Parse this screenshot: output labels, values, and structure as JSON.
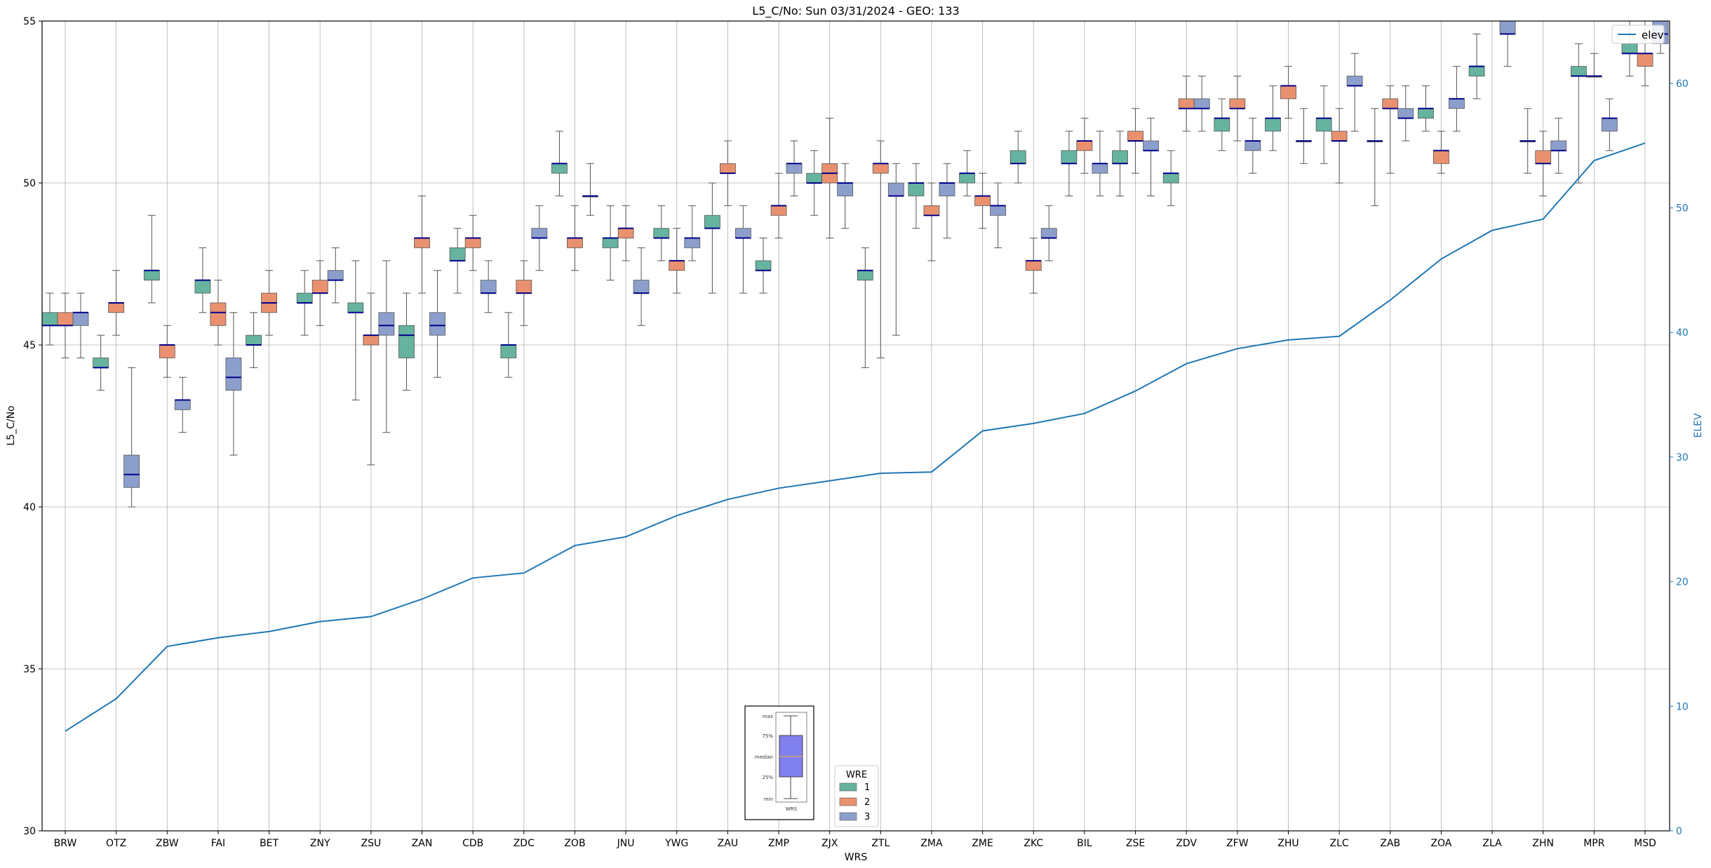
{
  "chart_data": {
    "type": "box",
    "title": "L5_C/No: Sun 03/31/2024 - GEO: 133",
    "xlabel": "WRS",
    "ylabel": "L5_C/No",
    "y2label": "ELEV",
    "ylim": [
      30,
      55
    ],
    "y2lim": [
      0,
      65
    ],
    "yticks": [
      "30",
      "35",
      "40",
      "45",
      "50",
      "55"
    ],
    "y2ticks": [
      "0",
      "10",
      "20",
      "30",
      "40",
      "50",
      "60"
    ],
    "grid": true,
    "categories": [
      "BRW",
      "OTZ",
      "ZBW",
      "FAI",
      "BET",
      "ZNY",
      "ZSU",
      "ZAN",
      "CDB",
      "ZDC",
      "ZOB",
      "JNU",
      "YWG",
      "ZAU",
      "ZMP",
      "ZJX",
      "ZTL",
      "ZMA",
      "ZME",
      "ZKC",
      "BIL",
      "ZSE",
      "ZDV",
      "ZFW",
      "ZHU",
      "ZLC",
      "ZAB",
      "ZOA",
      "ZLA",
      "ZHN",
      "MPR",
      "MSD"
    ],
    "series_colors": {
      "1": "#66b3a0",
      "2": "#e9916f",
      "3": "#8c9fcc"
    },
    "legend": {
      "title": "WRE",
      "entries": [
        "1",
        "2",
        "3"
      ],
      "placement": "bottom-center"
    },
    "boxes": {
      "BRW": [
        [
          45.0,
          45.6,
          45.6,
          46.0,
          46.6
        ],
        [
          44.6,
          45.6,
          45.6,
          46.0,
          46.6
        ],
        [
          44.6,
          45.6,
          46.0,
          46.0,
          46.6
        ]
      ],
      "OTZ": [
        [
          43.6,
          44.3,
          44.3,
          44.6,
          45.3
        ],
        [
          45.3,
          46.0,
          46.3,
          46.3,
          47.3
        ],
        [
          40.0,
          40.6,
          41.0,
          41.6,
          44.3
        ]
      ],
      "ZBW": [
        [
          46.3,
          47.0,
          47.3,
          47.3,
          49.0
        ],
        [
          44.0,
          44.6,
          45.0,
          45.0,
          45.6
        ],
        [
          42.3,
          43.0,
          43.3,
          43.3,
          44.0
        ]
      ],
      "FAI": [
        [
          46.0,
          46.6,
          47.0,
          47.0,
          48.0
        ],
        [
          45.0,
          45.6,
          46.0,
          46.3,
          47.0
        ],
        [
          41.6,
          43.6,
          44.0,
          44.6,
          46.0
        ]
      ],
      "BET": [
        [
          44.3,
          45.0,
          45.0,
          45.3,
          46.0
        ],
        [
          45.3,
          46.0,
          46.3,
          46.6,
          47.3
        ],
        null
      ],
      "ZNY": [
        [
          45.3,
          46.3,
          46.3,
          46.6,
          47.3
        ],
        [
          45.6,
          46.6,
          46.6,
          47.0,
          47.6
        ],
        [
          46.3,
          47.0,
          47.0,
          47.3,
          48.0
        ]
      ],
      "ZSU": [
        [
          43.3,
          46.0,
          46.0,
          46.3,
          47.6
        ],
        [
          41.3,
          45.0,
          45.3,
          45.3,
          46.6
        ],
        [
          42.3,
          45.3,
          45.6,
          46.0,
          47.6
        ]
      ],
      "ZAN": [
        [
          43.6,
          44.6,
          45.3,
          45.6,
          46.6
        ],
        [
          46.6,
          48.0,
          48.3,
          48.3,
          49.6
        ],
        [
          44.0,
          45.3,
          45.6,
          46.0,
          47.3
        ]
      ],
      "CDB": [
        [
          46.6,
          47.6,
          47.6,
          48.0,
          48.6
        ],
        [
          47.3,
          48.0,
          48.3,
          48.3,
          49.0
        ],
        [
          46.0,
          46.6,
          46.6,
          47.0,
          47.6
        ]
      ],
      "ZDC": [
        [
          44.0,
          44.6,
          45.0,
          45.0,
          46.0
        ],
        [
          45.6,
          46.6,
          46.6,
          47.0,
          47.6
        ],
        [
          47.3,
          48.3,
          48.3,
          48.6,
          49.3
        ]
      ],
      "ZOB": [
        [
          49.6,
          50.3,
          50.6,
          50.6,
          51.6
        ],
        [
          47.3,
          48.0,
          48.3,
          48.3,
          49.3
        ],
        [
          49.0,
          49.6,
          49.6,
          49.6,
          50.6
        ]
      ],
      "JNU": [
        [
          47.0,
          48.0,
          48.3,
          48.3,
          49.3
        ],
        [
          47.6,
          48.3,
          48.6,
          48.6,
          49.3
        ],
        [
          45.6,
          46.6,
          46.6,
          47.0,
          48.0
        ]
      ],
      "YWG": [
        [
          47.6,
          48.3,
          48.3,
          48.6,
          49.3
        ],
        [
          46.6,
          47.3,
          47.6,
          47.6,
          48.6
        ],
        [
          47.6,
          48.0,
          48.3,
          48.3,
          49.3
        ]
      ],
      "ZAU": [
        [
          46.6,
          48.6,
          48.6,
          49.0,
          50.0
        ],
        [
          49.3,
          50.3,
          50.3,
          50.6,
          51.3
        ],
        [
          46.6,
          48.3,
          48.3,
          48.6,
          49.3
        ]
      ],
      "ZMP": [
        [
          46.6,
          47.3,
          47.3,
          47.6,
          48.3
        ],
        [
          48.3,
          49.0,
          49.3,
          49.3,
          50.3
        ],
        [
          49.6,
          50.3,
          50.6,
          50.6,
          51.3
        ]
      ],
      "ZJX": [
        [
          49.0,
          50.0,
          50.0,
          50.3,
          51.0
        ],
        [
          48.3,
          50.0,
          50.3,
          50.6,
          52.0
        ],
        [
          48.6,
          49.6,
          50.0,
          50.0,
          50.6
        ]
      ],
      "ZTL": [
        [
          44.3,
          47.0,
          47.3,
          47.3,
          48.0
        ],
        [
          44.6,
          50.3,
          50.6,
          50.6,
          51.3
        ],
        [
          45.3,
          49.6,
          49.6,
          50.0,
          50.6
        ]
      ],
      "ZMA": [
        [
          48.6,
          49.6,
          50.0,
          50.0,
          50.6
        ],
        [
          47.6,
          49.0,
          49.0,
          49.3,
          50.0
        ],
        [
          48.3,
          49.6,
          50.0,
          50.0,
          50.6
        ]
      ],
      "ZME": [
        [
          49.6,
          50.0,
          50.3,
          50.3,
          51.0
        ],
        [
          48.6,
          49.3,
          49.6,
          49.6,
          50.3
        ],
        [
          48.0,
          49.0,
          49.3,
          49.3,
          50.0
        ]
      ],
      "ZKC": [
        [
          50.0,
          50.6,
          50.6,
          51.0,
          51.6
        ],
        [
          46.6,
          47.3,
          47.6,
          47.6,
          48.3
        ],
        [
          47.6,
          48.3,
          48.3,
          48.6,
          49.3
        ]
      ],
      "BIL": [
        [
          49.6,
          50.6,
          50.6,
          51.0,
          51.6
        ],
        [
          50.3,
          51.0,
          51.3,
          51.3,
          52.0
        ],
        [
          49.6,
          50.3,
          50.6,
          50.6,
          51.6
        ]
      ],
      "ZSE": [
        [
          49.6,
          50.6,
          50.6,
          51.0,
          51.6
        ],
        [
          50.3,
          51.3,
          51.3,
          51.6,
          52.3
        ],
        [
          49.6,
          51.0,
          51.0,
          51.3,
          52.0
        ]
      ],
      "ZDV": [
        [
          49.3,
          50.0,
          50.3,
          50.3,
          51.0
        ],
        [
          51.6,
          52.3,
          52.3,
          52.6,
          53.3
        ],
        [
          51.6,
          52.3,
          52.3,
          52.6,
          53.3
        ]
      ],
      "ZFW": [
        [
          51.0,
          51.6,
          52.0,
          52.0,
          52.6
        ],
        [
          51.3,
          52.3,
          52.3,
          52.6,
          53.3
        ],
        [
          50.3,
          51.0,
          51.3,
          51.3,
          52.0
        ]
      ],
      "ZHU": [
        [
          51.0,
          51.6,
          52.0,
          52.0,
          53.0
        ],
        [
          52.0,
          52.6,
          53.0,
          53.0,
          53.6
        ],
        [
          50.6,
          51.3,
          51.3,
          51.3,
          52.3
        ]
      ],
      "ZLC": [
        [
          50.6,
          51.6,
          52.0,
          52.0,
          53.0
        ],
        [
          50.0,
          51.3,
          51.3,
          51.6,
          52.3
        ],
        [
          51.6,
          53.0,
          53.0,
          53.3,
          54.0
        ]
      ],
      "ZAB": [
        [
          49.3,
          51.3,
          51.3,
          51.3,
          52.3
        ],
        [
          50.3,
          52.3,
          52.3,
          52.6,
          53.0
        ],
        [
          51.3,
          52.0,
          52.0,
          52.3,
          53.0
        ]
      ],
      "ZOA": [
        [
          51.6,
          52.0,
          52.3,
          52.3,
          53.0
        ],
        [
          50.3,
          50.6,
          51.0,
          51.0,
          51.6
        ],
        [
          51.6,
          52.3,
          52.6,
          52.6,
          53.6
        ]
      ],
      "ZLA": [
        [
          52.6,
          53.3,
          53.6,
          53.6,
          54.6
        ],
        null,
        [
          53.6,
          54.6,
          54.6,
          55.0,
          55.0
        ]
      ],
      "ZHN": [
        [
          50.3,
          51.3,
          51.3,
          51.3,
          52.3
        ],
        [
          49.6,
          50.6,
          50.6,
          51.0,
          51.6
        ],
        [
          50.3,
          51.0,
          51.0,
          51.3,
          52.0
        ]
      ],
      "MPR": [
        [
          50.0,
          53.3,
          53.3,
          53.6,
          54.3
        ],
        [
          53.3,
          53.3,
          53.3,
          53.3,
          54.0
        ],
        [
          51.0,
          51.6,
          52.0,
          52.0,
          52.6
        ]
      ],
      "MSD": [
        [
          53.3,
          54.0,
          54.0,
          54.3,
          55.0
        ],
        [
          53.0,
          53.6,
          54.0,
          54.0,
          55.0
        ],
        [
          54.0,
          54.3,
          54.6,
          55.0,
          55.0
        ]
      ]
    },
    "elev": {
      "name": "elev",
      "values": [
        8.0,
        10.6,
        14.8,
        15.5,
        16.0,
        16.8,
        17.2,
        18.6,
        20.3,
        20.7,
        22.9,
        23.6,
        25.3,
        26.6,
        27.5,
        28.1,
        28.7,
        28.8,
        32.1,
        32.7,
        33.5,
        35.3,
        37.5,
        38.7,
        39.4,
        39.7,
        42.6,
        45.9,
        48.2,
        49.1,
        53.8,
        55.2
      ],
      "color": "#1f77b4"
    },
    "inset_legend": {
      "labels": [
        "max",
        "75%",
        "median",
        "25%",
        "min"
      ],
      "xlabel": "WRS"
    }
  }
}
